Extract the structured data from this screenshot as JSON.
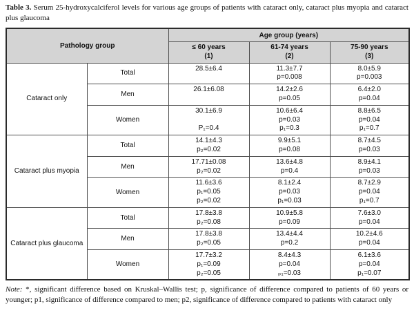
{
  "caption": {
    "bold": "Table 3.",
    "text": " Serum 25-hydroxycalciferol levels for various age groups of patients with cataract only, cataract plus myopia and cataract plus glaucoma"
  },
  "colors": {
    "header_background": "#d4d4d4",
    "border": "#4d4d4d",
    "text": "#111111"
  },
  "table": {
    "header": {
      "pathology_group": "Pathology group",
      "age_group": "Age group (years)",
      "columns": [
        {
          "label": "≤ 60 years",
          "sub": "(1)"
        },
        {
          "label": "61-74 years",
          "sub": "(2)"
        },
        {
          "label": "75-90 years",
          "sub": "(3)"
        }
      ]
    },
    "groups": [
      {
        "name": "Cataract only",
        "rows": [
          {
            "label": "Total",
            "cells": [
              [
                "28.5±6.4"
              ],
              [
                "11.3±7.7",
                "p=0.008"
              ],
              [
                "8.0±5.9",
                "p=0.003"
              ]
            ]
          },
          {
            "label": "Men",
            "cells": [
              [
                "26.1±6.08"
              ],
              [
                "14.2±2.6",
                "p=0.05"
              ],
              [
                "6.4±2.0",
                "p=0.04"
              ]
            ]
          },
          {
            "label": "Women",
            "cells": [
              [
                "30.1±6.9",
                "",
                "P₁=0.4"
              ],
              [
                "10.6±6.4",
                "p=0.03",
                "p₁=0.3"
              ],
              [
                "8.8±6.5",
                "p=0.04",
                "p₁=0.7"
              ]
            ]
          }
        ]
      },
      {
        "name": "Cataract plus myopia",
        "rows": [
          {
            "label": "Total",
            "cells": [
              [
                "14.1±4.3",
                "p₂=0.02"
              ],
              [
                "9.9±5.1",
                "p=0.08"
              ],
              [
                "8.7±4.5",
                "p=0.03"
              ]
            ]
          },
          {
            "label": "Men",
            "cells": [
              [
                "17.71±0.08",
                "p₂=0.02"
              ],
              [
                "13.6±4.8",
                "p=0.4"
              ],
              [
                "8.9±4.1",
                "p=0.03"
              ]
            ]
          },
          {
            "label": "Women",
            "cells": [
              [
                "11.6±3.6",
                "p₁=0.05",
                "p₂=0.02"
              ],
              [
                "8.1±2.4",
                "p=0.03",
                "p₁=0.03"
              ],
              [
                "8.7±2.9",
                "p=0.04",
                "p₁=0.7"
              ]
            ]
          }
        ]
      },
      {
        "name": "Cataract plus glaucoma",
        "rows": [
          {
            "label": "Total",
            "cells": [
              [
                "17.8±3.8",
                "p₂=0.08"
              ],
              [
                "10.9±5.8",
                "p=0.09"
              ],
              [
                "7.6±3.0",
                "p=0.04"
              ]
            ]
          },
          {
            "label": "Men",
            "cells": [
              [
                "17.8±3.8",
                "p₂=0.05"
              ],
              [
                "13.4±4.4",
                "p=0.2"
              ],
              [
                "10.2±4.6",
                "p=0.04"
              ]
            ]
          },
          {
            "label": "Women",
            "cells": [
              [
                "17.7±3.2",
                "p₁=0.09",
                "p₂=0.05"
              ],
              [
                "8.4±4.3",
                "p=0.04",
                "ₚ₁=0.03"
              ],
              [
                "6.1±3.6",
                "p=0.04",
                "p₁=0.07"
              ]
            ]
          }
        ]
      }
    ]
  },
  "note": {
    "label": "Note:",
    "text": " *, significant difference based on Kruskal–Wallis test; p, significance of difference compared to patients of 60 years or younger; p1, significance of difference compared to men;  p2, significance of difference compared to patients with cataract only"
  }
}
